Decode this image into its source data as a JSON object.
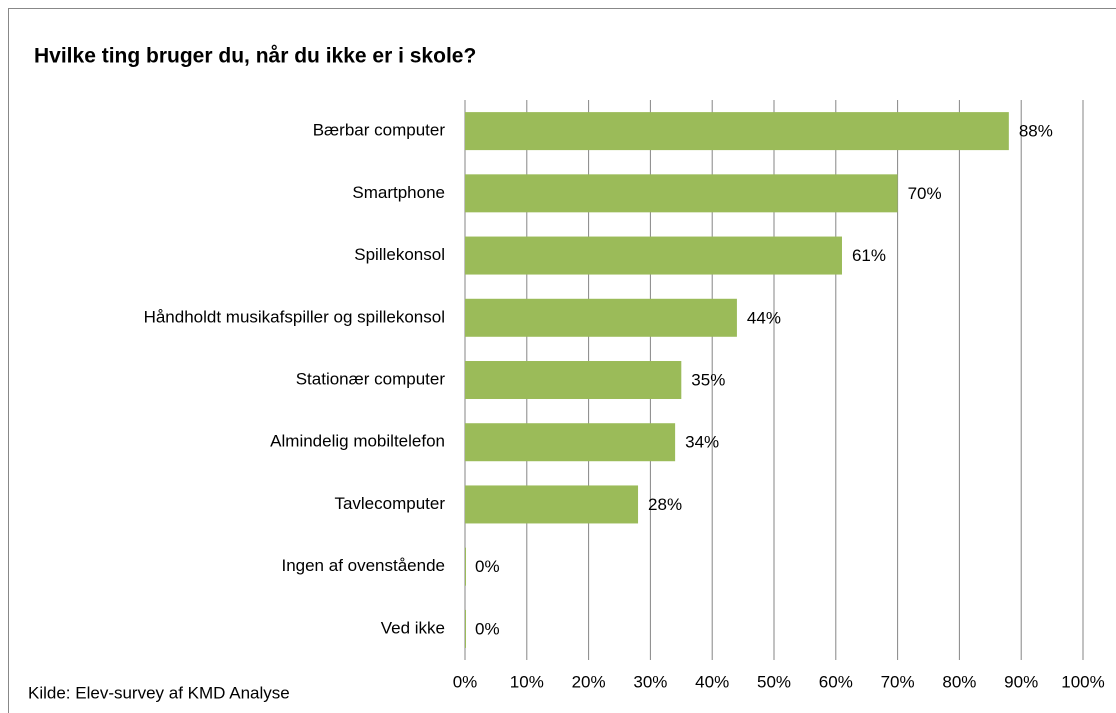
{
  "chart_data": {
    "type": "hbar",
    "title": "Hvilke ting bruger du, når du ikke er i skole?",
    "source": "Kilde:  Elev-survey af KMD Analyse",
    "categories": [
      "Bærbar computer",
      "Smartphone",
      "Spillekonsol",
      "Håndholdt musikafspiller og spillekonsol",
      "Stationær computer",
      "Almindelig mobiltelefon",
      "Tavlecomputer",
      "Ingen af ovenstående",
      "Ved ikke"
    ],
    "values": [
      88,
      70,
      61,
      44,
      35,
      34,
      28,
      0,
      0
    ],
    "value_labels": [
      "88%",
      "70%",
      "61%",
      "44%",
      "35%",
      "34%",
      "28%",
      "0%",
      "0%"
    ],
    "color": "#9bbb59",
    "xlim": [
      0,
      100
    ],
    "xticks": [
      {
        "value": 0,
        "label": "0%"
      },
      {
        "value": 10,
        "label": "10%"
      },
      {
        "value": 20,
        "label": "20%"
      },
      {
        "value": 30,
        "label": "30%"
      },
      {
        "value": 40,
        "label": "40%"
      },
      {
        "value": 50,
        "label": "50%"
      },
      {
        "value": 60,
        "label": "60%"
      },
      {
        "value": 70,
        "label": "70%"
      },
      {
        "value": 80,
        "label": "80%"
      },
      {
        "value": 90,
        "label": "90%"
      },
      {
        "value": 100,
        "label": "100%"
      }
    ],
    "grid": true
  }
}
